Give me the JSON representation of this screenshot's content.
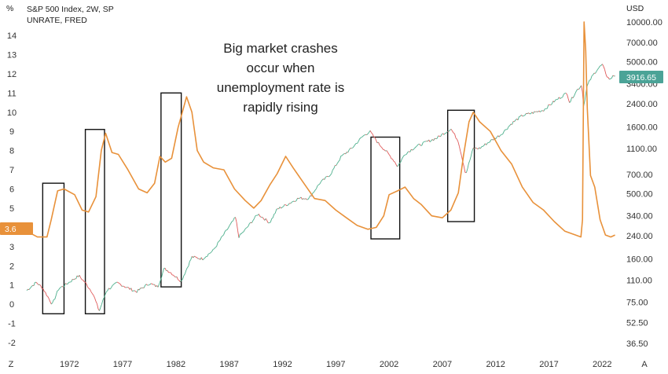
{
  "header": {
    "left_unit": "%",
    "right_unit": "USD",
    "series1_title": "S&P 500 Index, 2W, SP",
    "series2_title": "UNRATE, FRED"
  },
  "annotation": {
    "lines": [
      "Big market crashes",
      "occur when",
      "unemployment rate is",
      "rapidly rising"
    ]
  },
  "badges": {
    "spx_last": "3916.65",
    "unrate_last": "3.6"
  },
  "colors": {
    "unrate": "#e8913a",
    "spx_up": "#4caf8c",
    "spx_down": "#e05a5a",
    "spx_badge": "#4ba397",
    "unrate_badge": "#e8913a",
    "boxes": "#111111"
  },
  "corner_labels": {
    "bottom_left": "Z",
    "bottom_right": "A"
  },
  "chart_data": {
    "type": "line",
    "x_tick_labels": [
      "1972",
      "1977",
      "1982",
      "1987",
      "1992",
      "1997",
      "2002",
      "2007",
      "2012",
      "2017",
      "2022"
    ],
    "xlim": [
      1968,
      2023.6
    ],
    "left_axis": {
      "ticks": [
        "14",
        "13",
        "12",
        "11",
        "10",
        "9",
        "8",
        "7",
        "6",
        "5",
        "4",
        "3",
        "2",
        "1",
        "0",
        "-1",
        "-2"
      ],
      "ylim": [
        -2,
        14
      ]
    },
    "right_axis": {
      "scale": "log",
      "ticks": [
        "10000.00",
        "7000.00",
        "5000.00",
        "3400.00",
        "2400.00",
        "1600.00",
        "1100.00",
        "700.00",
        "500.00",
        "340.00",
        "240.00",
        "160.00",
        "110.00",
        "75.00",
        "52.50",
        "36.50"
      ]
    },
    "series": [
      {
        "name": "UNRATE, FRED",
        "axis": "left",
        "points": [
          [
            1968.0,
            3.8
          ],
          [
            1969.0,
            3.5
          ],
          [
            1969.9,
            3.5
          ],
          [
            1970.3,
            4.4
          ],
          [
            1970.9,
            5.9
          ],
          [
            1971.5,
            6.0
          ],
          [
            1972.5,
            5.7
          ],
          [
            1973.2,
            4.9
          ],
          [
            1973.8,
            4.8
          ],
          [
            1974.5,
            5.6
          ],
          [
            1975.0,
            8.0
          ],
          [
            1975.4,
            8.9
          ],
          [
            1976.0,
            7.9
          ],
          [
            1976.6,
            7.8
          ],
          [
            1977.5,
            7.0
          ],
          [
            1978.5,
            6.0
          ],
          [
            1979.3,
            5.8
          ],
          [
            1980.0,
            6.3
          ],
          [
            1980.5,
            7.7
          ],
          [
            1981.0,
            7.4
          ],
          [
            1981.6,
            7.6
          ],
          [
            1982.2,
            9.2
          ],
          [
            1982.8,
            10.4
          ],
          [
            1983.0,
            10.8
          ],
          [
            1983.5,
            10.0
          ],
          [
            1984.0,
            8.0
          ],
          [
            1984.6,
            7.4
          ],
          [
            1985.5,
            7.1
          ],
          [
            1986.5,
            7.0
          ],
          [
            1987.5,
            6.0
          ],
          [
            1988.5,
            5.4
          ],
          [
            1989.3,
            5.0
          ],
          [
            1990.0,
            5.4
          ],
          [
            1990.8,
            6.2
          ],
          [
            1991.5,
            6.8
          ],
          [
            1992.3,
            7.7
          ],
          [
            1993.0,
            7.1
          ],
          [
            1994.0,
            6.3
          ],
          [
            1995.0,
            5.5
          ],
          [
            1996.0,
            5.4
          ],
          [
            1997.0,
            4.9
          ],
          [
            1998.0,
            4.5
          ],
          [
            1999.0,
            4.1
          ],
          [
            2000.0,
            3.9
          ],
          [
            2000.8,
            4.0
          ],
          [
            2001.5,
            4.6
          ],
          [
            2002.0,
            5.7
          ],
          [
            2002.8,
            5.9
          ],
          [
            2003.5,
            6.1
          ],
          [
            2004.3,
            5.5
          ],
          [
            2005.0,
            5.2
          ],
          [
            2006.0,
            4.6
          ],
          [
            2007.0,
            4.5
          ],
          [
            2007.8,
            4.9
          ],
          [
            2008.5,
            5.8
          ],
          [
            2009.0,
            7.8
          ],
          [
            2009.5,
            9.5
          ],
          [
            2009.9,
            10.0
          ],
          [
            2010.5,
            9.5
          ],
          [
            2011.5,
            9.0
          ],
          [
            2012.5,
            8.0
          ],
          [
            2013.5,
            7.3
          ],
          [
            2014.5,
            6.1
          ],
          [
            2015.5,
            5.3
          ],
          [
            2016.5,
            4.9
          ],
          [
            2017.5,
            4.3
          ],
          [
            2018.5,
            3.8
          ],
          [
            2019.5,
            3.6
          ],
          [
            2020.0,
            3.5
          ],
          [
            2020.15,
            4.4
          ],
          [
            2020.3,
            14.7
          ],
          [
            2020.45,
            13.2
          ],
          [
            2020.6,
            10.2
          ],
          [
            2020.9,
            6.7
          ],
          [
            2021.3,
            6.1
          ],
          [
            2021.8,
            4.4
          ],
          [
            2022.3,
            3.6
          ],
          [
            2022.8,
            3.5
          ],
          [
            2023.2,
            3.6
          ]
        ]
      },
      {
        "name": "S&P 500 Index, 2W, SP",
        "axis": "right",
        "points": [
          [
            1968.0,
            92
          ],
          [
            1968.9,
            106
          ],
          [
            1969.5,
            96
          ],
          [
            1970.4,
            72
          ],
          [
            1971.0,
            95
          ],
          [
            1971.5,
            100
          ],
          [
            1972.9,
            119
          ],
          [
            1973.5,
            105
          ],
          [
            1974.2,
            88
          ],
          [
            1974.8,
            64
          ],
          [
            1975.5,
            92
          ],
          [
            1976.5,
            105
          ],
          [
            1977.5,
            96
          ],
          [
            1978.3,
            90
          ],
          [
            1979.5,
            104
          ],
          [
            1980.3,
            98
          ],
          [
            1980.9,
            135
          ],
          [
            1981.5,
            126
          ],
          [
            1982.5,
            108
          ],
          [
            1983.5,
            165
          ],
          [
            1984.5,
            160
          ],
          [
            1985.5,
            185
          ],
          [
            1986.5,
            245
          ],
          [
            1987.6,
            330
          ],
          [
            1987.9,
            235
          ],
          [
            1988.5,
            265
          ],
          [
            1989.7,
            350
          ],
          [
            1990.8,
            300
          ],
          [
            1991.5,
            380
          ],
          [
            1992.5,
            415
          ],
          [
            1993.5,
            460
          ],
          [
            1994.5,
            460
          ],
          [
            1995.5,
            600
          ],
          [
            1996.5,
            700
          ],
          [
            1997.5,
            950
          ],
          [
            1998.5,
            1100
          ],
          [
            1999.5,
            1350
          ],
          [
            2000.2,
            1480
          ],
          [
            2001.0,
            1200
          ],
          [
            2001.7,
            1050
          ],
          [
            2002.5,
            880
          ],
          [
            2002.8,
            800
          ],
          [
            2003.5,
            1000
          ],
          [
            2004.5,
            1130
          ],
          [
            2005.5,
            1230
          ],
          [
            2006.5,
            1320
          ],
          [
            2007.8,
            1550
          ],
          [
            2008.5,
            1250
          ],
          [
            2009.2,
            700
          ],
          [
            2009.9,
            1100
          ],
          [
            2010.5,
            1100
          ],
          [
            2011.5,
            1250
          ],
          [
            2012.5,
            1400
          ],
          [
            2013.5,
            1700
          ],
          [
            2014.5,
            1950
          ],
          [
            2015.5,
            2050
          ],
          [
            2016.5,
            2150
          ],
          [
            2017.5,
            2500
          ],
          [
            2018.7,
            2900
          ],
          [
            2018.95,
            2450
          ],
          [
            2019.5,
            2950
          ],
          [
            2020.1,
            3350
          ],
          [
            2020.25,
            2300
          ],
          [
            2020.6,
            3300
          ],
          [
            2021.0,
            3800
          ],
          [
            2021.5,
            4350
          ],
          [
            2022.0,
            4750
          ],
          [
            2022.5,
            3800
          ],
          [
            2022.8,
            3650
          ],
          [
            2023.0,
            3950
          ],
          [
            2023.3,
            3916.65
          ]
        ]
      }
    ],
    "highlight_boxes": [
      {
        "x": [
          1969.5,
          1971.5
        ],
        "y": [
          -0.5,
          6.3
        ]
      },
      {
        "x": [
          1973.5,
          1975.3
        ],
        "y": [
          -0.5,
          9.1
        ]
      },
      {
        "x": [
          1980.6,
          1982.5
        ],
        "y": [
          0.9,
          11.0
        ]
      },
      {
        "x": [
          2000.3,
          2003.0
        ],
        "y": [
          3.4,
          8.7
        ]
      },
      {
        "x": [
          2007.5,
          2010.0
        ],
        "y": [
          4.3,
          10.1
        ]
      }
    ]
  }
}
